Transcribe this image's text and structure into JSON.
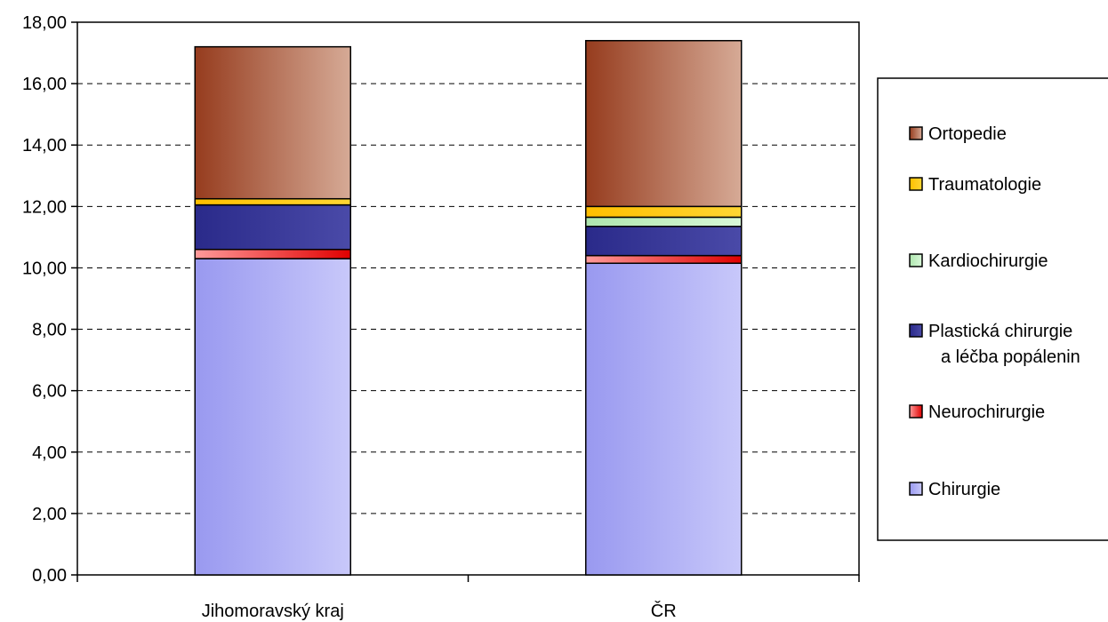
{
  "chart_data": {
    "type": "bar",
    "stacked": true,
    "title": "",
    "xlabel": "",
    "ylabel": "",
    "ylim": [
      0,
      18
    ],
    "yticks": [
      "0,00",
      "2,00",
      "4,00",
      "6,00",
      "8,00",
      "10,00",
      "12,00",
      "14,00",
      "16,00",
      "18,00"
    ],
    "grid": true,
    "legend_position": "right",
    "categories": [
      "Jihomoravský kraj",
      "ČR"
    ],
    "series": [
      {
        "name": "Chirurgie",
        "values": [
          10.3,
          10.15
        ],
        "color": "#b3b3f5",
        "color_dark": "#9999f0",
        "color_light": "#c8c8fa"
      },
      {
        "name": "Neurochirurgie",
        "values": [
          0.3,
          0.25
        ],
        "color": "#f06060",
        "color_dark": "#ff9a9a",
        "color_light": "#e00000"
      },
      {
        "name": "Plastická chirurgie a léčba popálenin",
        "values": [
          1.45,
          0.95
        ],
        "color": "#33339a",
        "color_dark": "#2a2a8a",
        "color_light": "#4a4aa8"
      },
      {
        "name": "Kardiochirurgie",
        "values": [
          0.0,
          0.3
        ],
        "color": "#c4f0c4",
        "color_dark": "#aee6ae",
        "color_light": "#d8f8d8"
      },
      {
        "name": "Traumatologie",
        "values": [
          0.2,
          0.35
        ],
        "color": "#ffcc00",
        "color_dark": "#ffbf00",
        "color_light": "#ffd633"
      },
      {
        "name": "Ortopedie",
        "values": [
          4.95,
          5.4
        ],
        "color": "#b87a5e",
        "color_dark": "#963c1e",
        "color_light": "#d6aa96"
      }
    ],
    "legend_lines": [
      {
        "series": "Ortopedie",
        "lines": [
          "Ortopedie"
        ]
      },
      {
        "series": "Traumatologie",
        "lines": [
          "Traumatologie"
        ]
      },
      {
        "series": "Kardiochirurgie",
        "lines": [
          "Kardiochirurgie"
        ]
      },
      {
        "series": "Plastická chirurgie a léčba popálenin",
        "lines": [
          "Plastická chirurgie",
          "a léčba popálenin"
        ]
      },
      {
        "series": "Neurochirurgie",
        "lines": [
          "Neurochirurgie"
        ]
      },
      {
        "series": "Chirurgie",
        "lines": [
          "Chirurgie"
        ]
      }
    ]
  }
}
